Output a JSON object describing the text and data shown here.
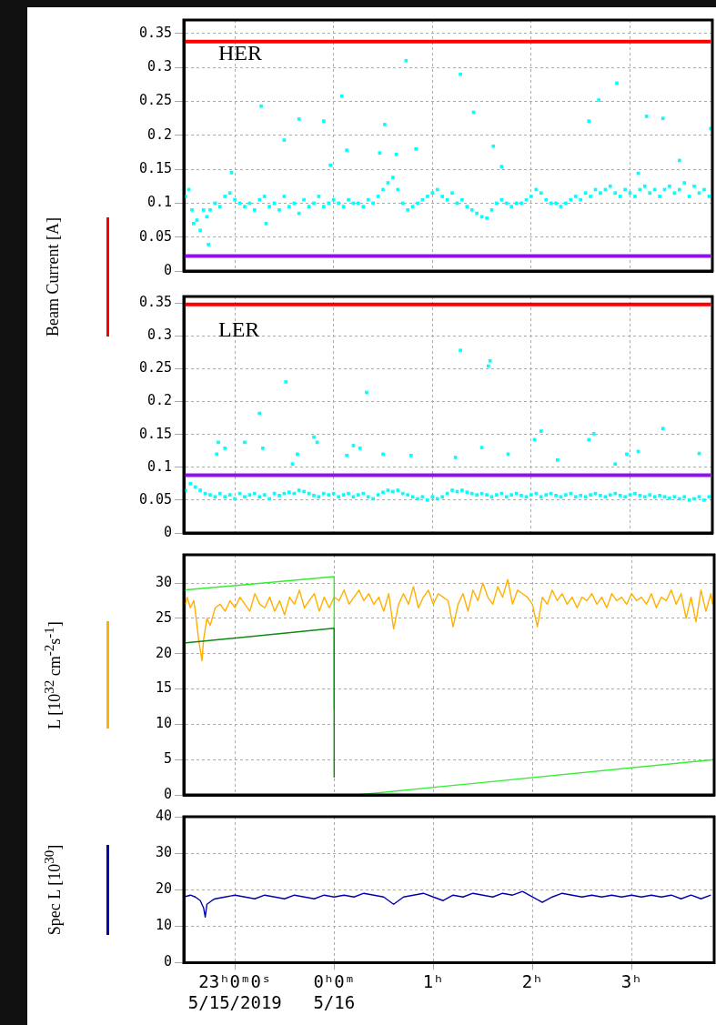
{
  "chart_data": [
    {
      "type": "line",
      "ylabel": "Beam Current [A]",
      "annotations": [
        "HER"
      ],
      "xlim": [
        "2019-05-15T22:29",
        "2019-05-16T03:50"
      ],
      "xticks": [
        {
          "value": "2019-05-15T23:00",
          "label": null
        },
        {
          "value": "2019-05-16T00:00",
          "label": null
        },
        {
          "value": "2019-05-16T01:00",
          "label": null
        },
        {
          "value": "2019-05-16T02:00",
          "label": null
        },
        {
          "value": "2019-05-16T03:00",
          "label": null
        }
      ],
      "ylim": [
        0,
        0.37
      ],
      "yticks": [
        0,
        0.05,
        0.1,
        0.15,
        0.2,
        0.25,
        0.3,
        0.35
      ],
      "tick_labels": "y",
      "grid": true,
      "marker": "square",
      "series": [
        {
          "color": "#ff0000",
          "marker": "none",
          "x": [
            "2019-05-15T22:29",
            "2019-05-16T03:49"
          ],
          "values": [
            0.338,
            0.338
          ]
        },
        {
          "color": "#9010f0",
          "marker": "none",
          "x": [
            "2019-05-15T22:29",
            "2019-05-16T03:49"
          ],
          "values": [
            0.022,
            0.022
          ]
        },
        {
          "type": "scatter",
          "color": "#00ffff",
          "x": [
            "2019-05-15T22:30",
            "2019-05-15T22:32",
            "2019-05-15T22:34",
            "2019-05-15T22:35",
            "2019-05-15T22:37",
            "2019-05-15T22:39",
            "2019-05-15T22:41",
            "2019-05-15T22:43",
            "2019-05-15T22:45",
            "2019-05-15T22:48",
            "2019-05-15T22:51",
            "2019-05-15T22:54",
            "2019-05-15T22:57",
            "2019-05-15T23:00",
            "2019-05-15T23:03",
            "2019-05-15T23:06",
            "2019-05-15T23:09",
            "2019-05-15T23:12",
            "2019-05-15T23:15",
            "2019-05-15T23:18",
            "2019-05-15T23:21",
            "2019-05-15T23:24",
            "2019-05-15T23:27",
            "2019-05-15T23:30",
            "2019-05-15T23:33",
            "2019-05-15T23:36",
            "2019-05-15T23:39",
            "2019-05-15T23:42",
            "2019-05-15T23:45",
            "2019-05-15T23:48",
            "2019-05-15T23:51",
            "2019-05-15T23:54",
            "2019-05-15T23:57",
            "2019-05-16T00:00",
            "2019-05-16T00:03",
            "2019-05-16T00:06",
            "2019-05-16T00:09",
            "2019-05-16T00:12",
            "2019-05-16T00:15",
            "2019-05-16T00:18",
            "2019-05-16T00:21",
            "2019-05-16T00:24",
            "2019-05-16T00:27",
            "2019-05-16T00:30",
            "2019-05-16T00:33",
            "2019-05-16T00:36",
            "2019-05-16T00:39",
            "2019-05-16T00:42",
            "2019-05-16T00:45",
            "2019-05-16T00:48",
            "2019-05-16T00:51",
            "2019-05-16T00:54",
            "2019-05-16T00:57",
            "2019-05-16T01:00",
            "2019-05-16T01:03",
            "2019-05-16T01:06",
            "2019-05-16T01:09",
            "2019-05-16T01:12",
            "2019-05-16T01:15",
            "2019-05-16T01:18",
            "2019-05-16T01:21",
            "2019-05-16T01:24",
            "2019-05-16T01:27",
            "2019-05-16T01:30",
            "2019-05-16T01:33",
            "2019-05-16T01:36",
            "2019-05-16T01:39",
            "2019-05-16T01:42",
            "2019-05-16T01:45",
            "2019-05-16T01:48",
            "2019-05-16T01:51",
            "2019-05-16T01:54",
            "2019-05-16T01:57",
            "2019-05-16T02:00",
            "2019-05-16T02:03",
            "2019-05-16T02:06",
            "2019-05-16T02:09",
            "2019-05-16T02:12",
            "2019-05-16T02:15",
            "2019-05-16T02:18",
            "2019-05-16T02:21",
            "2019-05-16T02:24",
            "2019-05-16T02:27",
            "2019-05-16T02:30",
            "2019-05-16T02:33",
            "2019-05-16T02:36",
            "2019-05-16T02:39",
            "2019-05-16T02:42",
            "2019-05-16T02:45",
            "2019-05-16T02:48",
            "2019-05-16T02:51",
            "2019-05-16T02:54",
            "2019-05-16T02:57",
            "2019-05-16T03:00",
            "2019-05-16T03:03",
            "2019-05-16T03:06",
            "2019-05-16T03:09",
            "2019-05-16T03:12",
            "2019-05-16T03:15",
            "2019-05-16T03:18",
            "2019-05-16T03:21",
            "2019-05-16T03:24",
            "2019-05-16T03:27",
            "2019-05-16T03:30",
            "2019-05-16T03:33",
            "2019-05-16T03:36",
            "2019-05-16T03:39",
            "2019-05-16T03:42",
            "2019-05-16T03:45",
            "2019-05-16T03:48",
            "2019-05-15T23:16",
            "2019-05-15T23:30",
            "2019-05-15T23:39",
            "2019-05-15T23:54",
            "2019-05-16T00:05",
            "2019-05-16T00:08",
            "2019-05-16T00:28",
            "2019-05-16T00:31",
            "2019-05-16T00:38",
            "2019-05-16T00:44",
            "2019-05-16T00:50",
            "2019-05-16T01:17",
            "2019-05-16T01:25",
            "2019-05-16T01:37",
            "2019-05-16T01:42",
            "2019-05-16T02:35",
            "2019-05-16T02:41",
            "2019-05-16T02:52",
            "2019-05-16T03:10",
            "2019-05-16T03:20",
            "2019-05-16T03:49",
            "2019-05-16T03:30",
            "2019-05-16T03:05",
            "2019-05-15T23:58",
            "2019-05-15T22:58",
            "2019-05-15T22:44",
            "2019-05-15T23:19"
          ],
          "values": [
            0.11,
            0.12,
            0.09,
            0.07,
            0.075,
            0.06,
            0.09,
            0.08,
            0.09,
            0.1,
            0.095,
            0.11,
            0.115,
            0.105,
            0.1,
            0.095,
            0.1,
            0.09,
            0.105,
            0.11,
            0.095,
            0.1,
            0.09,
            0.11,
            0.095,
            0.1,
            0.085,
            0.105,
            0.095,
            0.1,
            0.11,
            0.095,
            0.1,
            0.105,
            0.1,
            0.095,
            0.105,
            0.1,
            0.1,
            0.095,
            0.105,
            0.1,
            0.11,
            0.12,
            0.13,
            0.138,
            0.12,
            0.1,
            0.09,
            0.095,
            0.1,
            0.105,
            0.11,
            0.115,
            0.12,
            0.11,
            0.105,
            0.115,
            0.1,
            0.105,
            0.095,
            0.09,
            0.085,
            0.08,
            0.078,
            0.09,
            0.1,
            0.105,
            0.1,
            0.095,
            0.1,
            0.1,
            0.105,
            0.11,
            0.12,
            0.115,
            0.105,
            0.1,
            0.1,
            0.095,
            0.1,
            0.105,
            0.11,
            0.105,
            0.115,
            0.11,
            0.12,
            0.115,
            0.12,
            0.125,
            0.115,
            0.11,
            0.12,
            0.115,
            0.11,
            0.12,
            0.125,
            0.115,
            0.12,
            0.11,
            0.12,
            0.125,
            0.115,
            0.12,
            0.13,
            0.11,
            0.125,
            0.115,
            0.12,
            0.11,
            0.243,
            0.193,
            0.224,
            0.221,
            0.258,
            0.178,
            0.174,
            0.216,
            0.172,
            0.31,
            0.18,
            0.29,
            0.234,
            0.184,
            0.154,
            0.221,
            0.252,
            0.277,
            0.228,
            0.225,
            0.21,
            0.163,
            0.144,
            0.156,
            0.145,
            0.039,
            0.07
          ]
        }
      ]
    },
    {
      "type": "line",
      "annotations": [
        "LER"
      ],
      "xlim": [
        "2019-05-15T22:29",
        "2019-05-16T03:50"
      ],
      "xticks": [
        {
          "value": "2019-05-15T23:00",
          "label": null
        },
        {
          "value": "2019-05-16T00:00",
          "label": null
        },
        {
          "value": "2019-05-16T01:00",
          "label": null
        },
        {
          "value": "2019-05-16T02:00",
          "label": null
        },
        {
          "value": "2019-05-16T03:00",
          "label": null
        }
      ],
      "ylim": [
        0,
        0.36
      ],
      "yticks": [
        0,
        0.05,
        0.1,
        0.15,
        0.2,
        0.25,
        0.3,
        0.35
      ],
      "tick_labels": "y",
      "grid": true,
      "marker": "square",
      "series": [
        {
          "color": "#ff0000",
          "marker": "none",
          "x": [
            "2019-05-15T22:29",
            "2019-05-16T03:49"
          ],
          "values": [
            0.348,
            0.348
          ]
        },
        {
          "color": "#9010f0",
          "marker": "none",
          "x": [
            "2019-05-15T22:29",
            "2019-05-16T03:49"
          ],
          "values": [
            0.088,
            0.088
          ]
        },
        {
          "type": "scatter",
          "color": "#00ffff",
          "x": [
            "2019-05-15T22:30",
            "2019-05-15T22:33",
            "2019-05-15T22:36",
            "2019-05-15T22:39",
            "2019-05-15T22:42",
            "2019-05-15T22:45",
            "2019-05-15T22:48",
            "2019-05-15T22:51",
            "2019-05-15T22:54",
            "2019-05-15T22:57",
            "2019-05-15T23:00",
            "2019-05-15T23:03",
            "2019-05-15T23:06",
            "2019-05-15T23:09",
            "2019-05-15T23:12",
            "2019-05-15T23:15",
            "2019-05-15T23:18",
            "2019-05-15T23:21",
            "2019-05-15T23:24",
            "2019-05-15T23:27",
            "2019-05-15T23:30",
            "2019-05-15T23:33",
            "2019-05-15T23:36",
            "2019-05-15T23:39",
            "2019-05-15T23:42",
            "2019-05-15T23:45",
            "2019-05-15T23:48",
            "2019-05-15T23:51",
            "2019-05-15T23:54",
            "2019-05-15T23:57",
            "2019-05-16T00:00",
            "2019-05-16T00:03",
            "2019-05-16T00:06",
            "2019-05-16T00:09",
            "2019-05-16T00:12",
            "2019-05-16T00:15",
            "2019-05-16T00:18",
            "2019-05-16T00:21",
            "2019-05-16T00:24",
            "2019-05-16T00:27",
            "2019-05-16T00:30",
            "2019-05-16T00:33",
            "2019-05-16T00:36",
            "2019-05-16T00:39",
            "2019-05-16T00:42",
            "2019-05-16T00:45",
            "2019-05-16T00:48",
            "2019-05-16T00:51",
            "2019-05-16T00:54",
            "2019-05-16T00:57",
            "2019-05-16T01:00",
            "2019-05-16T01:03",
            "2019-05-16T01:06",
            "2019-05-16T01:09",
            "2019-05-16T01:12",
            "2019-05-16T01:15",
            "2019-05-16T01:18",
            "2019-05-16T01:21",
            "2019-05-16T01:24",
            "2019-05-16T01:27",
            "2019-05-16T01:30",
            "2019-05-16T01:33",
            "2019-05-16T01:36",
            "2019-05-16T01:39",
            "2019-05-16T01:42",
            "2019-05-16T01:45",
            "2019-05-16T01:48",
            "2019-05-16T01:51",
            "2019-05-16T01:54",
            "2019-05-16T01:57",
            "2019-05-16T02:00",
            "2019-05-16T02:03",
            "2019-05-16T02:06",
            "2019-05-16T02:09",
            "2019-05-16T02:12",
            "2019-05-16T02:15",
            "2019-05-16T02:18",
            "2019-05-16T02:21",
            "2019-05-16T02:24",
            "2019-05-16T02:27",
            "2019-05-16T02:30",
            "2019-05-16T02:33",
            "2019-05-16T02:36",
            "2019-05-16T02:39",
            "2019-05-16T02:42",
            "2019-05-16T02:45",
            "2019-05-16T02:48",
            "2019-05-16T02:51",
            "2019-05-16T02:54",
            "2019-05-16T02:57",
            "2019-05-16T03:00",
            "2019-05-16T03:03",
            "2019-05-16T03:06",
            "2019-05-16T03:09",
            "2019-05-16T03:12",
            "2019-05-16T03:15",
            "2019-05-16T03:18",
            "2019-05-16T03:21",
            "2019-05-16T03:24",
            "2019-05-16T03:27",
            "2019-05-16T03:30",
            "2019-05-16T03:33",
            "2019-05-16T03:36",
            "2019-05-16T03:39",
            "2019-05-16T03:42",
            "2019-05-16T03:45",
            "2019-05-16T03:48",
            "2019-05-15T22:49",
            "2019-05-15T22:50",
            "2019-05-15T22:54",
            "2019-05-15T23:06",
            "2019-05-15T23:15",
            "2019-05-15T23:17",
            "2019-05-15T23:31",
            "2019-05-15T23:35",
            "2019-05-15T23:38",
            "2019-05-15T23:48",
            "2019-05-15T23:50",
            "2019-05-16T00:08",
            "2019-05-16T00:12",
            "2019-05-16T00:16",
            "2019-05-16T00:20",
            "2019-05-16T00:30",
            "2019-05-16T00:47",
            "2019-05-16T01:14",
            "2019-05-16T01:17",
            "2019-05-16T01:30",
            "2019-05-16T01:34",
            "2019-05-16T01:35",
            "2019-05-16T01:46",
            "2019-05-16T02:02",
            "2019-05-16T02:06",
            "2019-05-16T02:16",
            "2019-05-16T02:35",
            "2019-05-16T02:38",
            "2019-05-16T02:51",
            "2019-05-16T02:58",
            "2019-05-16T03:05",
            "2019-05-16T03:20",
            "2019-05-16T03:42"
          ],
          "values": [
            0.065,
            0.075,
            0.07,
            0.065,
            0.06,
            0.058,
            0.055,
            0.06,
            0.055,
            0.058,
            0.052,
            0.06,
            0.055,
            0.058,
            0.06,
            0.055,
            0.058,
            0.052,
            0.06,
            0.057,
            0.06,
            0.062,
            0.06,
            0.065,
            0.063,
            0.06,
            0.057,
            0.055,
            0.06,
            0.058,
            0.06,
            0.055,
            0.058,
            0.06,
            0.055,
            0.058,
            0.06,
            0.055,
            0.052,
            0.058,
            0.062,
            0.065,
            0.063,
            0.065,
            0.06,
            0.058,
            0.055,
            0.052,
            0.055,
            0.05,
            0.055,
            0.052,
            0.055,
            0.06,
            0.065,
            0.063,
            0.065,
            0.062,
            0.06,
            0.058,
            0.06,
            0.058,
            0.055,
            0.058,
            0.06,
            0.055,
            0.058,
            0.06,
            0.057,
            0.055,
            0.058,
            0.06,
            0.055,
            0.058,
            0.06,
            0.057,
            0.055,
            0.058,
            0.06,
            0.055,
            0.057,
            0.055,
            0.058,
            0.06,
            0.057,
            0.055,
            0.058,
            0.06,
            0.057,
            0.055,
            0.058,
            0.06,
            0.057,
            0.055,
            0.058,
            0.055,
            0.057,
            0.055,
            0.053,
            0.055,
            0.052,
            0.055,
            0.05,
            0.052,
            0.055,
            0.05,
            0.055,
            0.12,
            0.138,
            0.129,
            0.138,
            0.182,
            0.129,
            0.23,
            0.105,
            0.12,
            0.146,
            0.138,
            0.118,
            0.133,
            0.129,
            0.214,
            0.12,
            0.118,
            0.115,
            0.278,
            0.13,
            0.254,
            0.262,
            0.12,
            0.142,
            0.155,
            0.111,
            0.142,
            0.151,
            0.105,
            0.12,
            0.124,
            0.159,
            0.121
          ]
        }
      ]
    },
    {
      "type": "line",
      "ylabel": "L [10$^{32}$ cm$^{-2}$s$^{-1}$]",
      "xlim": [
        "2019-05-15T22:29",
        "2019-05-16T03:50"
      ],
      "xticks": [
        {
          "value": "2019-05-15T23:00",
          "label": null
        },
        {
          "value": "2019-05-16T00:00",
          "label": null
        },
        {
          "value": "2019-05-16T01:00",
          "label": null
        },
        {
          "value": "2019-05-16T02:00",
          "label": null
        },
        {
          "value": "2019-05-16T03:00",
          "label": null
        }
      ],
      "ylim": [
        0,
        34
      ],
      "yticks": [
        0,
        5,
        10,
        15,
        20,
        25,
        30
      ],
      "tick_labels": "y",
      "grid": true,
      "series": [
        {
          "color": "#ffb000",
          "x": [
            "2019-05-15T22:30",
            "2019-05-15T22:31",
            "2019-05-15T22:33",
            "2019-05-15T22:35",
            "2019-05-15T22:36",
            "2019-05-15T22:38",
            "2019-05-15T22:40",
            "2019-05-15T22:41",
            "2019-05-15T22:43",
            "2019-05-15T22:45",
            "2019-05-15T22:48",
            "2019-05-15T22:51",
            "2019-05-15T22:54",
            "2019-05-15T22:57",
            "2019-05-15T23:00",
            "2019-05-15T23:03",
            "2019-05-15T23:06",
            "2019-05-15T23:09",
            "2019-05-15T23:12",
            "2019-05-15T23:15",
            "2019-05-15T23:18",
            "2019-05-15T23:21",
            "2019-05-15T23:24",
            "2019-05-15T23:27",
            "2019-05-15T23:30",
            "2019-05-15T23:33",
            "2019-05-15T23:36",
            "2019-05-15T23:39",
            "2019-05-15T23:42",
            "2019-05-15T23:45",
            "2019-05-15T23:48",
            "2019-05-15T23:51",
            "2019-05-15T23:54",
            "2019-05-15T23:57",
            "2019-05-16T00:00",
            "2019-05-16T00:03",
            "2019-05-16T00:06",
            "2019-05-16T00:09",
            "2019-05-16T00:12",
            "2019-05-16T00:15",
            "2019-05-16T00:18",
            "2019-05-16T00:21",
            "2019-05-16T00:24",
            "2019-05-16T00:27",
            "2019-05-16T00:30",
            "2019-05-16T00:33",
            "2019-05-16T00:36",
            "2019-05-16T00:39",
            "2019-05-16T00:42",
            "2019-05-16T00:45",
            "2019-05-16T00:48",
            "2019-05-16T00:51",
            "2019-05-16T00:54",
            "2019-05-16T00:57",
            "2019-05-16T01:00",
            "2019-05-16T01:03",
            "2019-05-16T01:06",
            "2019-05-16T01:09",
            "2019-05-16T01:12",
            "2019-05-16T01:15",
            "2019-05-16T01:18",
            "2019-05-16T01:21",
            "2019-05-16T01:24",
            "2019-05-16T01:27",
            "2019-05-16T01:30",
            "2019-05-16T01:33",
            "2019-05-16T01:36",
            "2019-05-16T01:39",
            "2019-05-16T01:42",
            "2019-05-16T01:45",
            "2019-05-16T01:48",
            "2019-05-16T01:51",
            "2019-05-16T01:54",
            "2019-05-16T01:57",
            "2019-05-16T02:00",
            "2019-05-16T02:03",
            "2019-05-16T02:06",
            "2019-05-16T02:09",
            "2019-05-16T02:12",
            "2019-05-16T02:15",
            "2019-05-16T02:18",
            "2019-05-16T02:21",
            "2019-05-16T02:24",
            "2019-05-16T02:27",
            "2019-05-16T02:30",
            "2019-05-16T02:33",
            "2019-05-16T02:36",
            "2019-05-16T02:39",
            "2019-05-16T02:42",
            "2019-05-16T02:45",
            "2019-05-16T02:48",
            "2019-05-16T02:51",
            "2019-05-16T02:54",
            "2019-05-16T02:57",
            "2019-05-16T03:00",
            "2019-05-16T03:03",
            "2019-05-16T03:06",
            "2019-05-16T03:09",
            "2019-05-16T03:12",
            "2019-05-16T03:15",
            "2019-05-16T03:18",
            "2019-05-16T03:21",
            "2019-05-16T03:24",
            "2019-05-16T03:27",
            "2019-05-16T03:30",
            "2019-05-16T03:33",
            "2019-05-16T03:36",
            "2019-05-16T03:39",
            "2019-05-16T03:42",
            "2019-05-16T03:45",
            "2019-05-16T03:48",
            "2019-05-16T03:49"
          ],
          "values": [
            27,
            28,
            26.5,
            27.5,
            26,
            22,
            19,
            22,
            25,
            24,
            26.5,
            27,
            26,
            27.5,
            26.5,
            28,
            27,
            26,
            28.5,
            27,
            26.5,
            28,
            26,
            27.5,
            25.5,
            28,
            27,
            29,
            26.5,
            27.5,
            28.5,
            26,
            28,
            26.5,
            28,
            27.5,
            29,
            27,
            28,
            29,
            27.5,
            28.5,
            27,
            28,
            26,
            28.5,
            23.5,
            27,
            28.5,
            27,
            29.5,
            26.5,
            28,
            29,
            27,
            28.5,
            28,
            27.5,
            23.8,
            27,
            28.5,
            26,
            29,
            27.5,
            30,
            28,
            27,
            29.5,
            28,
            30.5,
            27,
            29,
            28.5,
            28,
            27,
            23.8,
            28,
            27,
            29,
            27.5,
            28.5,
            27,
            28,
            26.5,
            28,
            27.5,
            28.5,
            27,
            28,
            26.5,
            28.5,
            27.5,
            28,
            27,
            28.5,
            27.5,
            28,
            27,
            28.5,
            26.5,
            28,
            27.5,
            29,
            27,
            28.5,
            25,
            28,
            24.5,
            29,
            26,
            28.5,
            27
          ]
        },
        {
          "color": "#33ee33",
          "x": [
            "2019-05-15T22:29",
            "2019-05-16T00:00",
            "2019-05-16T00:00"
          ],
          "values": [
            29,
            30.9,
            12.1
          ]
        },
        {
          "color": "#33ee33",
          "x": [
            "2019-05-16T00:14",
            "2019-05-16T03:50"
          ],
          "values": [
            0,
            5
          ]
        },
        {
          "color": "#118811",
          "x": [
            "2019-05-15T22:29",
            "2019-05-16T00:00",
            "2019-05-16T00:00"
          ],
          "values": [
            21.5,
            23.6,
            2.5
          ]
        }
      ]
    },
    {
      "type": "line",
      "ylabel": "Spec L [10$^{30}$]",
      "xlim": [
        "2019-05-15T22:29",
        "2019-05-16T03:50"
      ],
      "xticks": [
        {
          "value": "2019-05-15T23:00",
          "label": "23ʰ0ᵐ0ˢ\n5/15/2019"
        },
        {
          "value": "2019-05-16T00:00",
          "label": "0ʰ0ᵐ\n5/16"
        },
        {
          "value": "2019-05-16T01:00",
          "label": "1ʰ"
        },
        {
          "value": "2019-05-16T02:00",
          "label": "2ʰ"
        },
        {
          "value": "2019-05-16T03:00",
          "label": "3ʰ"
        }
      ],
      "ylim": [
        0,
        40
      ],
      "yticks": [
        0,
        10,
        20,
        30,
        40
      ],
      "grid": true,
      "series": [
        {
          "color": "#0000b0",
          "x": [
            "2019-05-15T22:29",
            "2019-05-15T22:33",
            "2019-05-15T22:36",
            "2019-05-15T22:39",
            "2019-05-15T22:41",
            "2019-05-15T22:42",
            "2019-05-15T22:43",
            "2019-05-15T22:46",
            "2019-05-15T22:48",
            "2019-05-15T22:54",
            "2019-05-15T23:00",
            "2019-05-15T23:06",
            "2019-05-15T23:12",
            "2019-05-15T23:18",
            "2019-05-15T23:24",
            "2019-05-15T23:30",
            "2019-05-15T23:36",
            "2019-05-15T23:42",
            "2019-05-15T23:48",
            "2019-05-15T23:54",
            "2019-05-16T00:00",
            "2019-05-16T00:06",
            "2019-05-16T00:12",
            "2019-05-16T00:18",
            "2019-05-16T00:24",
            "2019-05-16T00:30",
            "2019-05-16T00:36",
            "2019-05-16T00:42",
            "2019-05-16T00:48",
            "2019-05-16T00:54",
            "2019-05-16T01:00",
            "2019-05-16T01:06",
            "2019-05-16T01:12",
            "2019-05-16T01:18",
            "2019-05-16T01:24",
            "2019-05-16T01:30",
            "2019-05-16T01:36",
            "2019-05-16T01:42",
            "2019-05-16T01:48",
            "2019-05-16T01:54",
            "2019-05-16T02:00",
            "2019-05-16T02:06",
            "2019-05-16T02:12",
            "2019-05-16T02:18",
            "2019-05-16T02:24",
            "2019-05-16T02:30",
            "2019-05-16T02:36",
            "2019-05-16T02:42",
            "2019-05-16T02:48",
            "2019-05-16T02:54",
            "2019-05-16T03:00",
            "2019-05-16T03:06",
            "2019-05-16T03:12",
            "2019-05-16T03:18",
            "2019-05-16T03:24",
            "2019-05-16T03:30",
            "2019-05-16T03:36",
            "2019-05-16T03:42",
            "2019-05-16T03:48"
          ],
          "values": [
            18,
            18.5,
            18,
            17,
            15,
            12.5,
            16,
            17,
            17.5,
            18,
            18.5,
            18,
            17.5,
            18.5,
            18,
            17.5,
            18.5,
            18,
            17.5,
            18.5,
            18,
            18.5,
            18,
            19,
            18.5,
            18,
            16,
            18,
            18.5,
            19,
            18,
            17,
            18.5,
            18,
            19,
            18.5,
            18,
            19,
            18.5,
            19.5,
            18,
            16.5,
            18,
            19,
            18.5,
            18,
            18.5,
            18,
            18.5,
            18,
            18.5,
            18,
            18.5,
            18,
            18.5,
            17.5,
            18.5,
            17.5,
            18.5
          ]
        }
      ]
    }
  ]
}
